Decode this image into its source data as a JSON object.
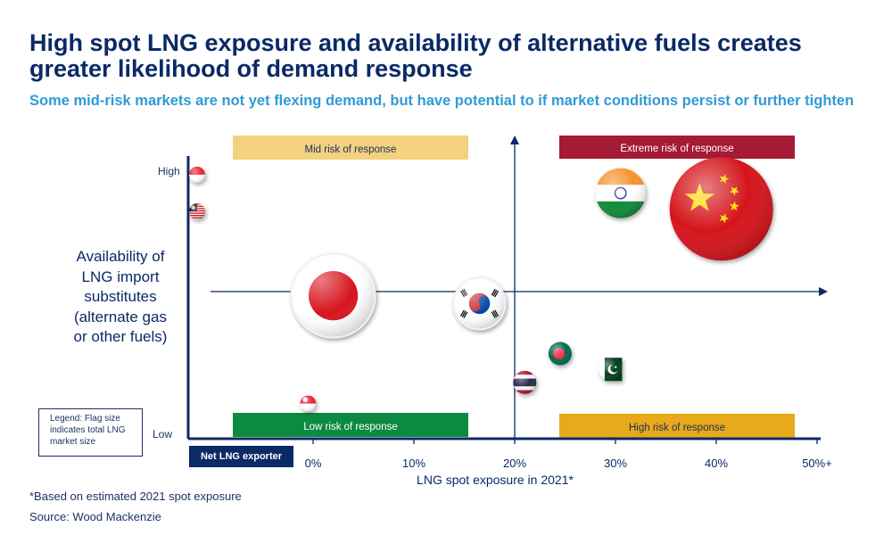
{
  "header": {
    "title": "High spot LNG exposure and availability of alternative fuels creates greater likelihood of demand response",
    "subtitle": "Some mid-risk markets are not yet flexing demand, but have potential to if market conditions persist or further tighten"
  },
  "legend": {
    "text": "Legend: Flag size indicates total LNG market size"
  },
  "exporter_label": "Net LNG exporter",
  "footnotes": {
    "note": "*Based on estimated 2021 spot exposure",
    "source": "Source: Wood Mackenzie"
  },
  "colors": {
    "axis": "#0b2a66",
    "mid_risk": "#f2d27e",
    "extreme_risk": "#a51a34",
    "low_risk": "#0c8a3f",
    "high_risk": "#e8a91a"
  },
  "chart_data": {
    "type": "scatter",
    "xlabel": "LNG spot exposure in 2021*",
    "ylabel": "Availability of LNG import substitutes (alternate gas or other fuels)",
    "x_ticks": [
      "0%",
      "10%",
      "20%",
      "30%",
      "40%",
      "50%+"
    ],
    "y_ticks": [
      "High",
      "Low"
    ],
    "quadrants": [
      {
        "label": "Mid risk of response",
        "position": "top-left"
      },
      {
        "label": "Extreme risk of response",
        "position": "top-right"
      },
      {
        "label": "Low risk of response",
        "position": "bottom-left"
      },
      {
        "label": "High risk of response",
        "position": "bottom-right"
      }
    ],
    "points": [
      {
        "flag": "singapore-top",
        "x": -11.5,
        "y": 0.98,
        "size": "tiny"
      },
      {
        "flag": "malaysia",
        "x": -11.5,
        "y": 0.84,
        "size": "tiny"
      },
      {
        "flag": "japan",
        "x": 2,
        "y": 0.52,
        "size": "large"
      },
      {
        "flag": "south-korea",
        "x": 16.5,
        "y": 0.49,
        "size": "medium"
      },
      {
        "flag": "india",
        "x": 30.5,
        "y": 0.91,
        "size": "medium"
      },
      {
        "flag": "china",
        "x": 40.5,
        "y": 0.85,
        "size": "very large"
      },
      {
        "flag": "bangladesh",
        "x": 24.5,
        "y": 0.3,
        "size": "small"
      },
      {
        "flag": "pakistan",
        "x": 29.5,
        "y": 0.24,
        "size": "small"
      },
      {
        "flag": "thailand",
        "x": 21,
        "y": 0.19,
        "size": "small"
      },
      {
        "flag": "singapore",
        "x": -0.5,
        "y": 0.11,
        "size": "tiny"
      }
    ]
  }
}
